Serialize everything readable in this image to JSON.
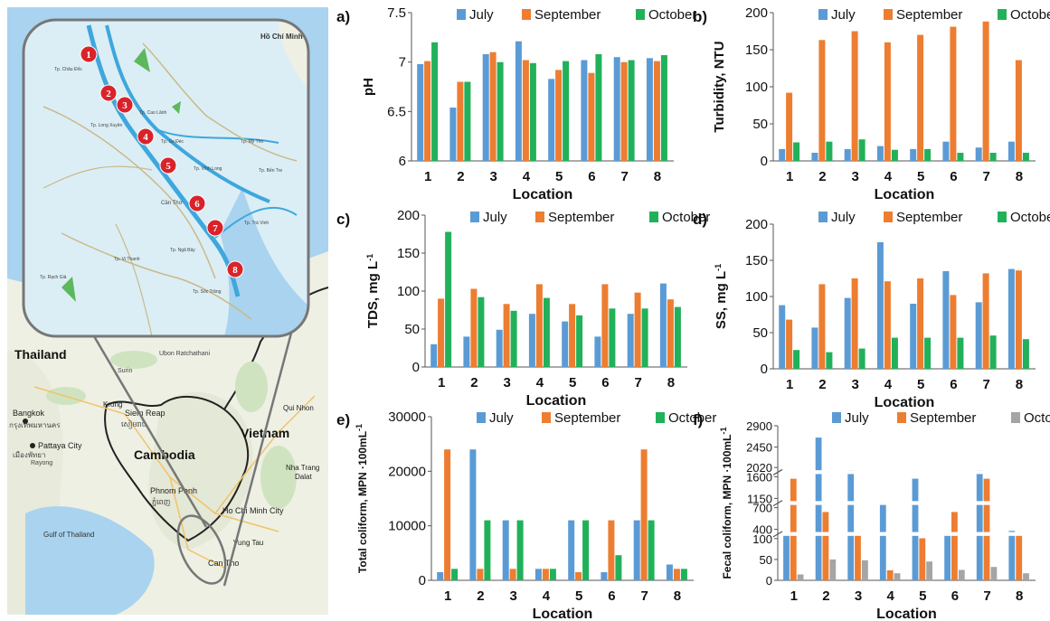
{
  "map": {
    "countries": [
      "Thailand",
      "Vietnam",
      "Cambodia"
    ],
    "cities": [
      {
        "name": "Bangkok",
        "local": "กรุงเทพมหานคร"
      },
      {
        "name": "Pattaya City",
        "local": "เมืองพัทยา"
      },
      {
        "name": "Phnom Penh",
        "local": "ភ្នំពេញ"
      },
      {
        "name": "Siem Reap",
        "local": "សៀមរាប"
      },
      {
        "name": "Ho Chi Minh City"
      },
      {
        "name": "Can Tho"
      },
      {
        "name": "Vung Tau"
      },
      {
        "name": "Dalat"
      },
      {
        "name": "Nha Trang"
      },
      {
        "name": "Qui Nhon"
      },
      {
        "name": "Krong"
      },
      {
        "name": "Surin"
      },
      {
        "name": "Ubon Ratchathani"
      },
      {
        "name": "Rayong"
      }
    ],
    "sea_labels": [
      "Gulf of Thailand"
    ],
    "inset_labels": [
      "Hồ Chí Minh",
      "Tp. Châu Đốc",
      "Tp. Long Xuyên",
      "Tp. Sa Đéc",
      "Tp. Vĩnh Long",
      "Cần Thơ",
      "Tp. Mỹ Tho",
      "Tp. Bến Tre",
      "Tp. Trà Vinh",
      "Tp. Sóc Trăng",
      "Tp. Rạch Giá",
      "Tp. Cao Lãnh",
      "Tp. Vị Thanh",
      "Tp. Ngã Bảy"
    ],
    "sites": [
      "1",
      "2",
      "3",
      "4",
      "5",
      "6",
      "7",
      "8"
    ]
  },
  "colors": {
    "July": "#5b9bd5",
    "September": "#ed7d31",
    "October": "#21b15a",
    "October_f": "#a5a5a5"
  },
  "chart_data": [
    {
      "panel": "a)",
      "type": "bar",
      "categories": [
        "1",
        "2",
        "3",
        "4",
        "5",
        "6",
        "7",
        "8"
      ],
      "series": [
        {
          "name": "July",
          "values": [
            6.98,
            6.54,
            7.08,
            7.21,
            6.83,
            7.02,
            7.05,
            7.04
          ]
        },
        {
          "name": "September",
          "values": [
            7.01,
            6.8,
            7.1,
            7.02,
            6.92,
            6.89,
            7.0,
            7.01
          ]
        },
        {
          "name": "October",
          "values": [
            7.2,
            6.8,
            7.0,
            6.99,
            7.01,
            7.08,
            7.02,
            7.07
          ]
        }
      ],
      "xlabel": "Location",
      "ylabel": "pH",
      "ylim": [
        6,
        7.5
      ],
      "yticks": [
        "6",
        "6.5",
        "7",
        "7.5"
      ],
      "legend": "top"
    },
    {
      "panel": "b)",
      "type": "bar",
      "categories": [
        "1",
        "2",
        "3",
        "4",
        "5",
        "6",
        "7",
        "8"
      ],
      "series": [
        {
          "name": "July",
          "values": [
            16,
            11,
            16,
            20,
            16,
            26,
            18,
            26
          ]
        },
        {
          "name": "September",
          "values": [
            92,
            163,
            175,
            160,
            170,
            181,
            188,
            136
          ]
        },
        {
          "name": "October",
          "values": [
            25,
            26,
            29,
            15,
            16,
            11,
            11,
            11
          ]
        }
      ],
      "xlabel": "Location",
      "ylabel": "Turbidity, NTU",
      "ylim": [
        0,
        200
      ],
      "yticks": [
        "0",
        "50",
        "100",
        "150",
        "200"
      ],
      "legend": "top"
    },
    {
      "panel": "c)",
      "type": "bar",
      "categories": [
        "1",
        "2",
        "3",
        "4",
        "5",
        "6",
        "7",
        "8"
      ],
      "series": [
        {
          "name": "July",
          "values": [
            30,
            40,
            49,
            70,
            60,
            40,
            70,
            110
          ]
        },
        {
          "name": "September",
          "values": [
            90,
            103,
            83,
            109,
            83,
            109,
            98,
            89
          ]
        },
        {
          "name": "October",
          "values": [
            178,
            92,
            74,
            91,
            68,
            77,
            77,
            79
          ]
        }
      ],
      "xlabel": "Location",
      "ylabel": "TDS, mg  L",
      "ylabel_sup": "-1",
      "ylim": [
        0,
        200
      ],
      "yticks": [
        "0",
        "50",
        "100",
        "150",
        "200"
      ],
      "legend": "top"
    },
    {
      "panel": "d)",
      "type": "bar",
      "categories": [
        "1",
        "2",
        "3",
        "4",
        "5",
        "6",
        "7",
        "8"
      ],
      "series": [
        {
          "name": "July",
          "values": [
            88,
            57,
            98,
            175,
            90,
            135,
            92,
            138
          ]
        },
        {
          "name": "September",
          "values": [
            68,
            117,
            125,
            121,
            125,
            102,
            132,
            136
          ]
        },
        {
          "name": "October",
          "values": [
            26,
            23,
            28,
            43,
            43,
            43,
            46,
            41
          ]
        }
      ],
      "xlabel": "Location",
      "ylabel": "SS, mg  L",
      "ylabel_sup": "-1",
      "ylim": [
        0,
        200
      ],
      "yticks": [
        "0",
        "50",
        "100",
        "150",
        "200"
      ],
      "legend": "top"
    },
    {
      "panel": "e)",
      "type": "bar",
      "categories": [
        "1",
        "2",
        "3",
        "4",
        "5",
        "6",
        "7",
        "8"
      ],
      "series": [
        {
          "name": "July",
          "values": [
            1500,
            24000,
            11000,
            2100,
            11000,
            1500,
            11000,
            2900
          ]
        },
        {
          "name": "September",
          "values": [
            24000,
            2100,
            2100,
            2100,
            1500,
            11000,
            24000,
            2100
          ]
        },
        {
          "name": "October",
          "values": [
            2100,
            11000,
            11000,
            2100,
            11000,
            4600,
            11000,
            2100
          ]
        }
      ],
      "xlabel": "Location",
      "ylabel": "Total coliform, MPN ·100mL",
      "ylabel_sup": "-1",
      "ylim": [
        0,
        30000
      ],
      "yticks": [
        "0",
        "10000",
        "20000",
        "30000"
      ],
      "legend": "top"
    },
    {
      "panel": "f)",
      "type": "bar",
      "broken_axis": true,
      "categories": [
        "1",
        "2",
        "3",
        "4",
        "5",
        "6",
        "7",
        "8"
      ],
      "series": [
        {
          "name": "July",
          "values": [
            270,
            2650,
            1900,
            860,
            1560,
            270,
            1900,
            350
          ]
        },
        {
          "name": "September",
          "values": [
            1560,
            640,
            270,
            24,
            110,
            640,
            1560,
            270
          ]
        },
        {
          "name": "October",
          "values": [
            14,
            50,
            48,
            17,
            45,
            25,
            32,
            17
          ]
        }
      ],
      "xlabel": "Location",
      "ylabel": "Fecal coliform, MPN ·100mL",
      "ylabel_sup": "-1",
      "yticks": [
        "0",
        "50",
        "100",
        "400",
        "700",
        "1150",
        "1600",
        "2020",
        "2450",
        "2900"
      ],
      "legend": "top"
    }
  ]
}
